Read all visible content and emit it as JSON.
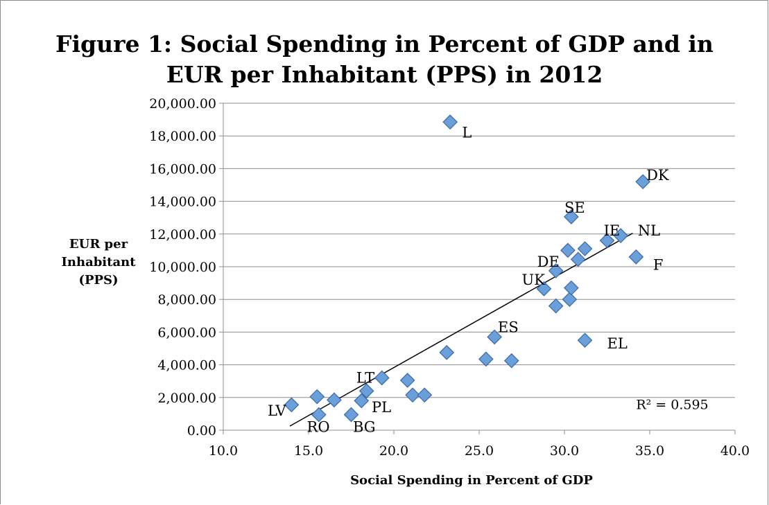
{
  "chart_data": {
    "type": "scatter",
    "title_line1": "Figure 1: Social Spending in Percent of GDP and in",
    "title_line2": "EUR per Inhabitant (PPS) in 2012",
    "xlabel": "Social Spending in Percent of GDP",
    "ylabel_lines": [
      "EUR per",
      "Inhabitant",
      "(PPS)"
    ],
    "xlim": [
      10,
      40
    ],
    "ylim": [
      0,
      20000
    ],
    "x_ticks": [
      {
        "value": 10,
        "label": "10.0"
      },
      {
        "value": 15,
        "label": "15.0"
      },
      {
        "value": 20,
        "label": "20.0"
      },
      {
        "value": 25,
        "label": "25.0"
      },
      {
        "value": 30,
        "label": "30.0"
      },
      {
        "value": 35,
        "label": "35.0"
      },
      {
        "value": 40,
        "label": "40.0"
      }
    ],
    "y_ticks": [
      {
        "value": 0,
        "label": "0.00"
      },
      {
        "value": 2000,
        "label": "2,000.00"
      },
      {
        "value": 4000,
        "label": "4,000.00"
      },
      {
        "value": 6000,
        "label": "6,000.00"
      },
      {
        "value": 8000,
        "label": "8,000.00"
      },
      {
        "value": 10000,
        "label": "10,000.00"
      },
      {
        "value": 12000,
        "label": "12,000.00"
      },
      {
        "value": 14000,
        "label": "14,000.00"
      },
      {
        "value": 16000,
        "label": "16,000.00"
      },
      {
        "value": 18000,
        "label": "18,000.00"
      },
      {
        "value": 20000,
        "label": "20,000.00"
      }
    ],
    "grid": "horizontal",
    "marker_color": "#6a9fd9",
    "marker_edge": "#3a68a8",
    "points": [
      {
        "x": 14.0,
        "y": 1550,
        "label": "LV",
        "label_x": 12.6,
        "label_y": 900
      },
      {
        "x": 15.5,
        "y": 2050,
        "label": "",
        "label_x": null,
        "label_y": null
      },
      {
        "x": 15.6,
        "y": 950,
        "label": "RO",
        "label_x": 14.9,
        "label_y": -100
      },
      {
        "x": 16.5,
        "y": 1850,
        "label": "",
        "label_x": null,
        "label_y": null
      },
      {
        "x": 17.5,
        "y": 950,
        "label": "BG",
        "label_x": 17.6,
        "label_y": -100
      },
      {
        "x": 18.1,
        "y": 1800,
        "label": "PL",
        "label_x": 18.7,
        "label_y": 1100
      },
      {
        "x": 18.4,
        "y": 2400,
        "label": "",
        "label_x": null,
        "label_y": null
      },
      {
        "x": 19.3,
        "y": 3200,
        "label": "LT",
        "label_x": 17.8,
        "label_y": 2900
      },
      {
        "x": 20.8,
        "y": 3050,
        "label": "",
        "label_x": null,
        "label_y": null
      },
      {
        "x": 21.1,
        "y": 2150,
        "label": "",
        "label_x": null,
        "label_y": null
      },
      {
        "x": 21.8,
        "y": 2150,
        "label": "",
        "label_x": null,
        "label_y": null
      },
      {
        "x": 23.1,
        "y": 4750,
        "label": "",
        "label_x": null,
        "label_y": null
      },
      {
        "x": 23.3,
        "y": 18850,
        "label": "L",
        "label_x": 24.0,
        "label_y": 17900
      },
      {
        "x": 25.4,
        "y": 4350,
        "label": "",
        "label_x": null,
        "label_y": null
      },
      {
        "x": 25.9,
        "y": 5700,
        "label": "ES",
        "label_x": 26.1,
        "label_y": 6000
      },
      {
        "x": 26.9,
        "y": 4250,
        "label": "",
        "label_x": null,
        "label_y": null
      },
      {
        "x": 28.8,
        "y": 8650,
        "label": "UK",
        "label_x": 27.5,
        "label_y": 8900
      },
      {
        "x": 29.5,
        "y": 7600,
        "label": "",
        "label_x": null,
        "label_y": null
      },
      {
        "x": 29.5,
        "y": 9750,
        "label": "DE",
        "label_x": 28.4,
        "label_y": 10000
      },
      {
        "x": 30.2,
        "y": 11000,
        "label": "",
        "label_x": null,
        "label_y": null
      },
      {
        "x": 30.3,
        "y": 8000,
        "label": "",
        "label_x": null,
        "label_y": null
      },
      {
        "x": 30.4,
        "y": 8700,
        "label": "",
        "label_x": null,
        "label_y": null
      },
      {
        "x": 30.4,
        "y": 13050,
        "label": "SE",
        "label_x": 30.0,
        "label_y": 13300
      },
      {
        "x": 30.8,
        "y": 10450,
        "label": "",
        "label_x": null,
        "label_y": null
      },
      {
        "x": 31.2,
        "y": 11100,
        "label": "",
        "label_x": null,
        "label_y": null
      },
      {
        "x": 31.2,
        "y": 5500,
        "label": "EL",
        "label_x": 32.5,
        "label_y": 5000
      },
      {
        "x": 32.5,
        "y": 11600,
        "label": "IE",
        "label_x": 32.3,
        "label_y": 11900
      },
      {
        "x": 33.3,
        "y": 11900,
        "label": "NL",
        "label_x": 34.3,
        "label_y": 11900
      },
      {
        "x": 34.2,
        "y": 10600,
        "label": "F",
        "label_x": 35.2,
        "label_y": 9800
      },
      {
        "x": 34.6,
        "y": 15200,
        "label": "DK",
        "label_x": 34.8,
        "label_y": 15300
      }
    ],
    "trendline": {
      "x1": 13.9,
      "y1": 250,
      "x2": 34.0,
      "y2": 12050
    },
    "r2_label": "R² = 0.595",
    "r2_pos": {
      "x": 34.2,
      "y": 1300
    }
  }
}
